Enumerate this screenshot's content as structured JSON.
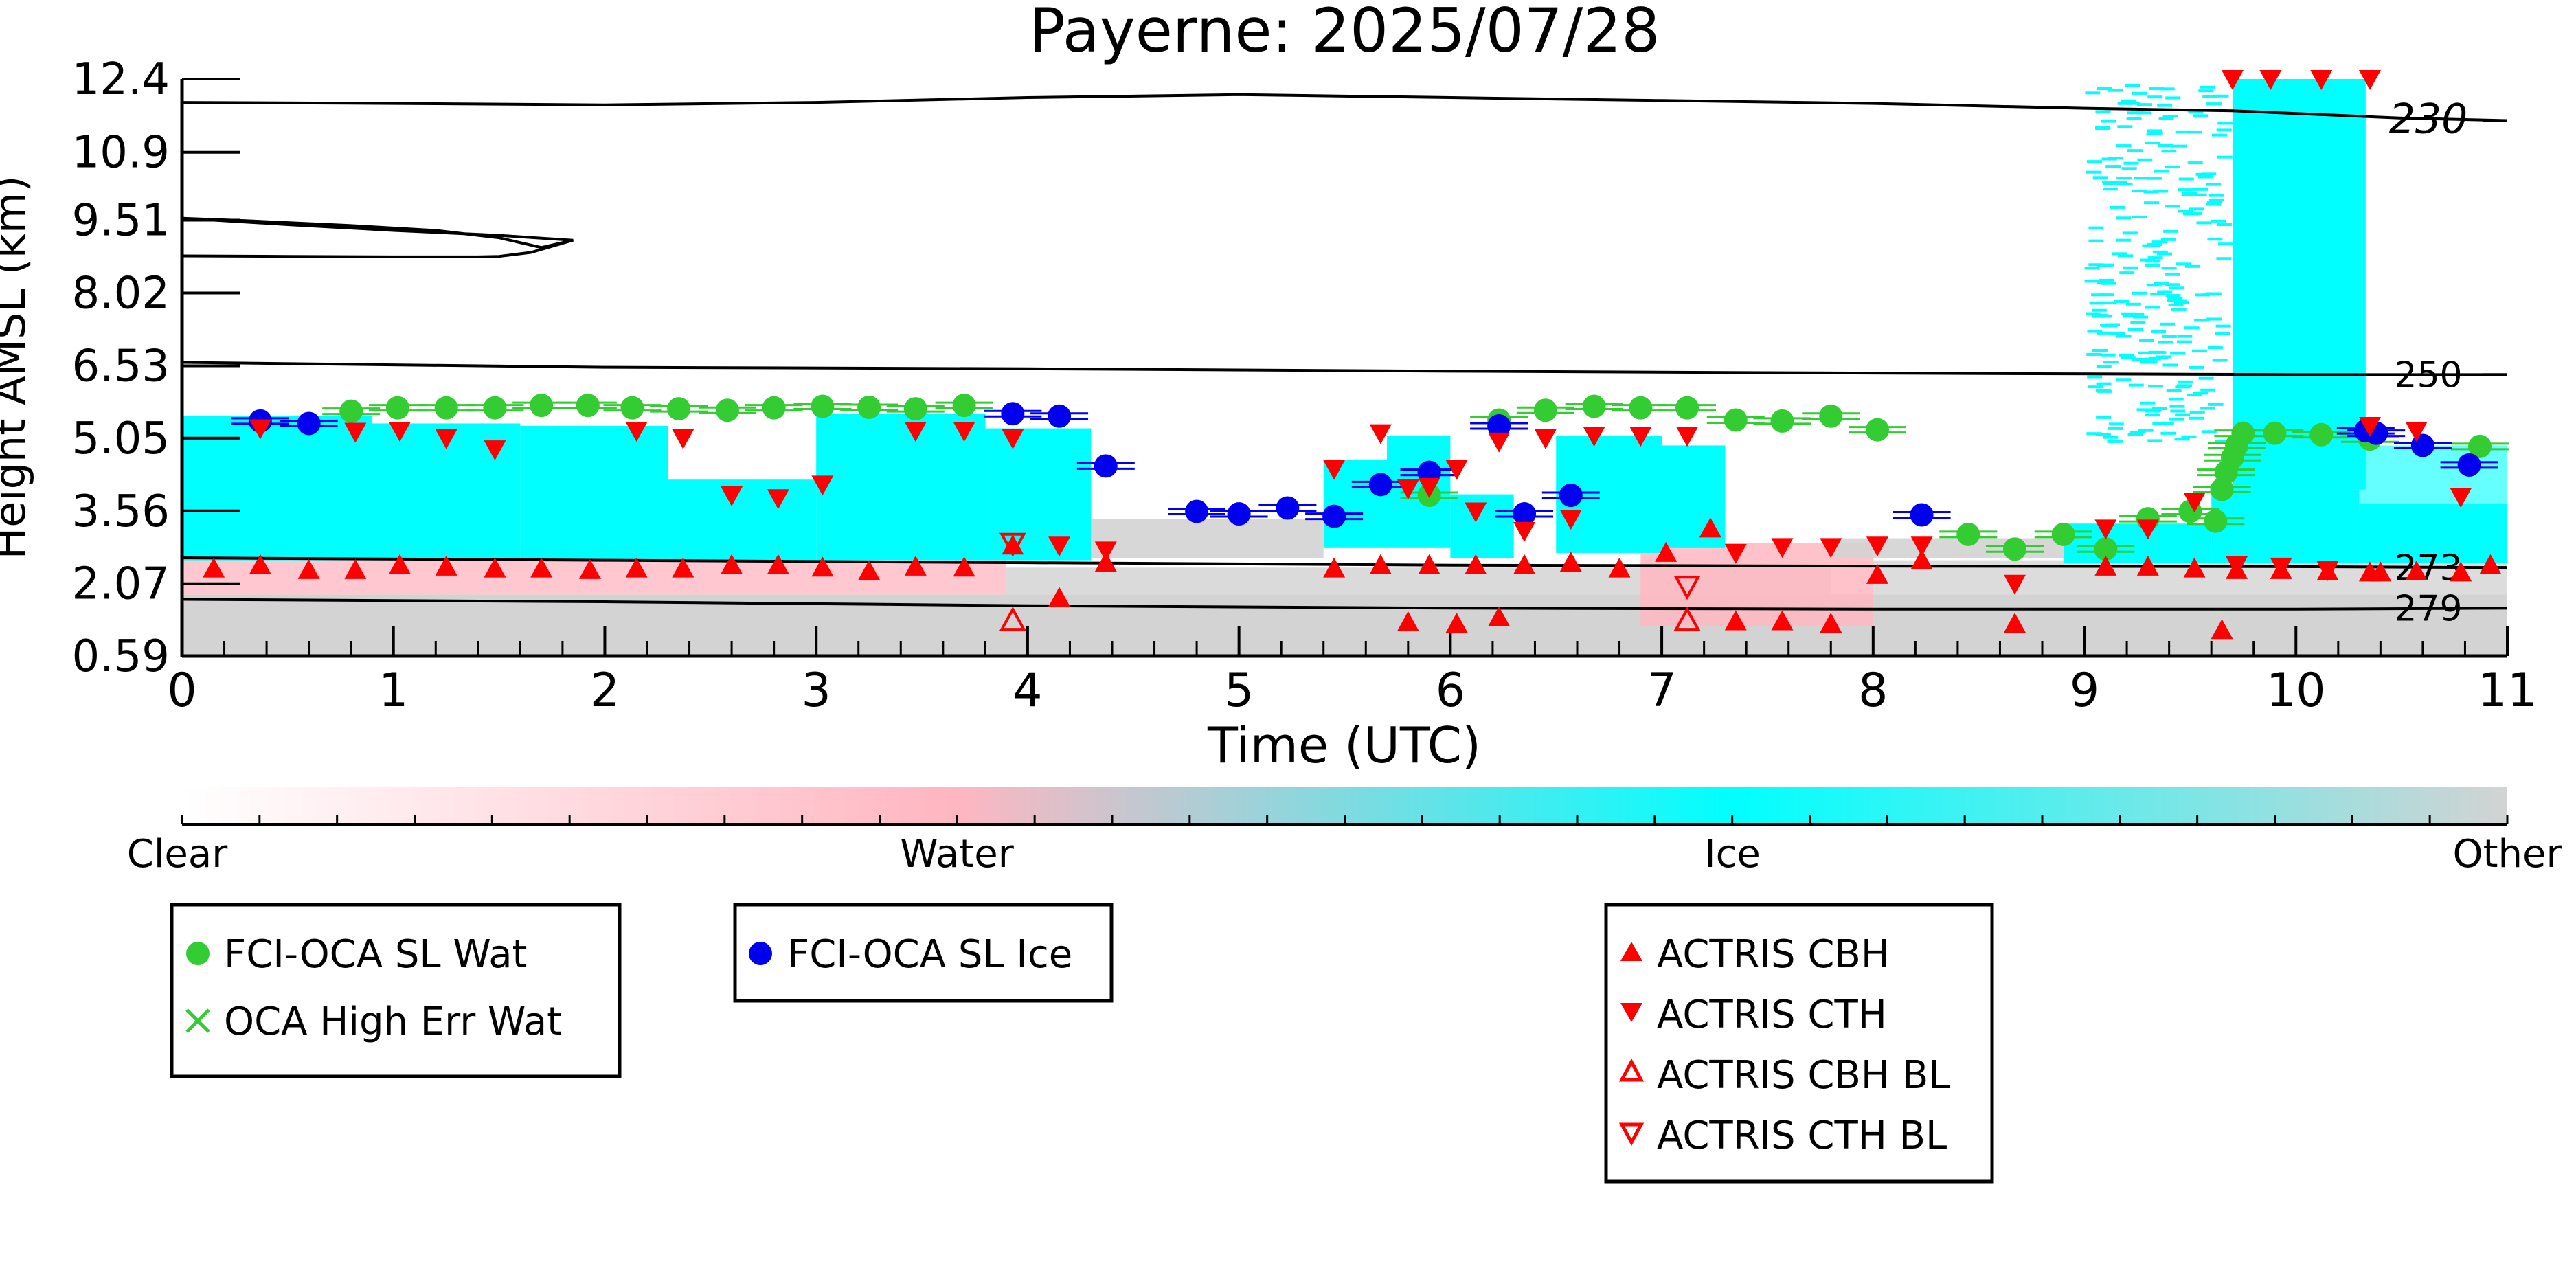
{
  "chart_data": {
    "type": "scatter",
    "title": "Payerne: 2025/07/28",
    "xlabel": "Time (UTC)",
    "ylabel": "Height AMSL (km)",
    "xlim": [
      0,
      11
    ],
    "ylim": [
      0.59,
      12.4
    ],
    "x_ticks": [
      "0",
      "1",
      "2",
      "3",
      "4",
      "5",
      "6",
      "7",
      "8",
      "9",
      "10",
      "11"
    ],
    "y_ticks": [
      "0.59",
      "2.07",
      "3.56",
      "5.05",
      "6.53",
      "8.02",
      "9.51",
      "10.9",
      "12.4"
    ],
    "colorbar": {
      "labels": [
        "Clear",
        "Water",
        "Ice",
        "Other"
      ],
      "colors": [
        "#ffffff",
        "#ffb6c1",
        "#00ffff",
        "#d3d3d3"
      ]
    },
    "isotherms": [
      {
        "label": "230",
        "x": [
          0,
          1,
          2,
          3,
          4,
          5,
          6,
          7,
          8,
          9,
          9.7,
          10.5,
          11
        ],
        "y": [
          11.92,
          11.9,
          11.87,
          11.92,
          12.02,
          12.08,
          12.02,
          11.96,
          11.9,
          11.8,
          11.75,
          11.6,
          11.55
        ]
      },
      {
        "label": "250",
        "x": [
          0,
          2,
          4,
          6,
          8,
          10,
          11
        ],
        "y": [
          6.6,
          6.5,
          6.47,
          6.42,
          6.38,
          6.35,
          6.35
        ]
      },
      {
        "label": "273",
        "x": [
          0,
          2,
          4,
          6,
          8,
          10,
          11
        ],
        "y": [
          2.6,
          2.55,
          2.5,
          2.45,
          2.43,
          2.42,
          2.4
        ]
      },
      {
        "label": "279",
        "x": [
          0,
          2,
          4,
          6,
          8,
          10,
          11
        ],
        "y": [
          1.75,
          1.7,
          1.62,
          1.57,
          1.55,
          1.55,
          1.57
        ]
      },
      {
        "label": "",
        "x": [
          0,
          0.3,
          0.8,
          1.2,
          1.5,
          1.7,
          1.85,
          1.5,
          1.0,
          0.5,
          0
        ],
        "y": [
          9.55,
          9.5,
          9.4,
          9.3,
          9.15,
          8.95,
          9.1,
          9.2,
          9.3,
          9.42,
          9.55
        ]
      },
      {
        "label": "",
        "x": [
          0,
          0.5,
          1.0,
          1.4,
          1.5,
          1.65,
          1.85
        ],
        "y": [
          8.78,
          8.77,
          8.76,
          8.76,
          8.77,
          8.85,
          9.1
        ]
      }
    ],
    "series": [
      {
        "name": "FCI-OCA SL Wat",
        "marker": "circle",
        "color": "#33cc33",
        "x": [
          0.8,
          1.02,
          1.25,
          1.48,
          1.7,
          1.92,
          2.13,
          2.35,
          2.58,
          2.8,
          3.03,
          3.25,
          3.47,
          3.7,
          5.9,
          6.23,
          6.45,
          6.68,
          6.9,
          7.12,
          7.35,
          7.57,
          7.8,
          8.02,
          8.45,
          8.67,
          8.9,
          9.1,
          9.3,
          9.5,
          9.62,
          9.65,
          9.67,
          9.7,
          9.72,
          9.75,
          9.9,
          10.12,
          10.35,
          10.87
        ],
        "y": [
          5.6,
          5.67,
          5.67,
          5.67,
          5.72,
          5.72,
          5.67,
          5.65,
          5.62,
          5.67,
          5.7,
          5.68,
          5.65,
          5.72,
          3.88,
          5.42,
          5.62,
          5.7,
          5.67,
          5.67,
          5.42,
          5.4,
          5.5,
          5.22,
          3.08,
          2.78,
          3.08,
          2.78,
          3.4,
          3.55,
          3.35,
          4.0,
          4.35,
          4.65,
          4.9,
          5.15,
          5.15,
          5.12,
          5.03,
          4.88
        ]
      },
      {
        "name": "OCA High Err Wat",
        "marker": "x",
        "color": "#33cc33",
        "x": [],
        "y": []
      },
      {
        "name": "FCI-OCA SL Ice",
        "marker": "circle",
        "color": "#0000ee",
        "x": [
          0.37,
          0.6,
          3.93,
          4.15,
          4.37,
          4.8,
          5.0,
          5.23,
          5.45,
          5.67,
          5.9,
          6.35,
          6.57,
          5.9,
          6.23,
          8.23,
          10.33,
          10.38,
          10.6,
          10.82
        ],
        "y": [
          5.4,
          5.35,
          5.55,
          5.5,
          4.48,
          3.55,
          3.5,
          3.62,
          3.45,
          4.1,
          4.35,
          3.5,
          3.88,
          4.35,
          5.3,
          3.48,
          5.2,
          5.15,
          4.9,
          4.5
        ]
      },
      {
        "name": "ACTRIS CBH",
        "marker": "triangle-up",
        "color": "#ff0000",
        "filled": true,
        "x": [
          0.15,
          0.37,
          0.6,
          0.82,
          1.03,
          1.25,
          1.48,
          1.7,
          1.93,
          2.15,
          2.37,
          2.6,
          2.82,
          3.03,
          3.25,
          3.47,
          3.7,
          3.93,
          4.15,
          4.37,
          5.45,
          5.67,
          5.9,
          6.12,
          6.35,
          6.57,
          6.8,
          7.02,
          7.23,
          5.8,
          6.03,
          6.23,
          7.35,
          7.57,
          7.8,
          8.02,
          8.23,
          8.67,
          9.1,
          9.3,
          9.52,
          9.72,
          9.93,
          10.15,
          10.35,
          10.57,
          10.78,
          10.92,
          9.65,
          10.4
        ],
        "y": [
          2.38,
          2.45,
          2.35,
          2.35,
          2.45,
          2.42,
          2.38,
          2.38,
          2.35,
          2.38,
          2.38,
          2.45,
          2.45,
          2.4,
          2.33,
          2.42,
          2.4,
          2.85,
          1.78,
          2.5,
          2.38,
          2.45,
          2.45,
          2.45,
          2.45,
          2.5,
          2.38,
          2.7,
          3.2,
          1.28,
          1.25,
          1.38,
          1.3,
          1.3,
          1.25,
          2.25,
          2.55,
          1.25,
          2.42,
          2.42,
          2.38,
          2.35,
          2.35,
          2.32,
          2.3,
          2.32,
          2.3,
          2.45,
          1.12,
          2.3
        ]
      },
      {
        "name": "ACTRIS CTH",
        "marker": "triangle-down",
        "color": "#ff0000",
        "filled": true,
        "x": [
          0.37,
          0.82,
          1.03,
          1.25,
          1.48,
          2.15,
          2.37,
          2.6,
          2.82,
          3.03,
          3.47,
          3.7,
          3.93,
          4.15,
          4.37,
          5.45,
          5.67,
          5.9,
          6.12,
          6.35,
          6.57,
          5.8,
          6.03,
          6.23,
          6.45,
          6.68,
          6.9,
          7.12,
          7.35,
          7.57,
          7.8,
          8.02,
          8.23,
          8.67,
          9.1,
          9.3,
          9.52,
          9.72,
          9.93,
          10.15,
          10.35,
          10.57,
          10.78,
          9.7,
          9.88,
          10.12,
          10.35
        ],
        "y": [
          5.25,
          5.18,
          5.2,
          5.05,
          4.82,
          5.2,
          5.05,
          3.88,
          3.82,
          4.1,
          5.2,
          5.2,
          5.05,
          2.85,
          2.75,
          4.42,
          5.15,
          4.05,
          3.55,
          3.15,
          3.4,
          4.02,
          4.42,
          4.98,
          5.05,
          5.1,
          5.1,
          5.1,
          2.7,
          2.82,
          2.82,
          2.85,
          2.85,
          2.07,
          3.2,
          3.2,
          3.75,
          2.45,
          2.42,
          2.35,
          5.3,
          5.2,
          3.85,
          12.4,
          12.4,
          12.4,
          12.4
        ]
      },
      {
        "name": "ACTRIS CBH BL",
        "marker": "triangle-up",
        "color": "#ff0000",
        "filled": false,
        "x": [
          3.93,
          7.12
        ],
        "y": [
          1.32,
          1.32
        ]
      },
      {
        "name": "ACTRIS CTH BL",
        "marker": "triangle-down",
        "color": "#ff0000",
        "filled": false,
        "x": [
          3.93,
          7.12
        ],
        "y": [
          2.9,
          2.02
        ]
      }
    ],
    "legend": [
      {
        "items": [
          "FCI-OCA SL Wat",
          "OCA High Err Wat"
        ],
        "placement": "bottom-left"
      },
      {
        "items": [
          "FCI-OCA SL Ice"
        ],
        "placement": "bottom-left"
      },
      {
        "items": [
          "ACTRIS CBH",
          "ACTRIS CTH",
          "ACTRIS CBH BL",
          "ACTRIS CTH BL"
        ],
        "placement": "bottom-center"
      }
    ]
  }
}
